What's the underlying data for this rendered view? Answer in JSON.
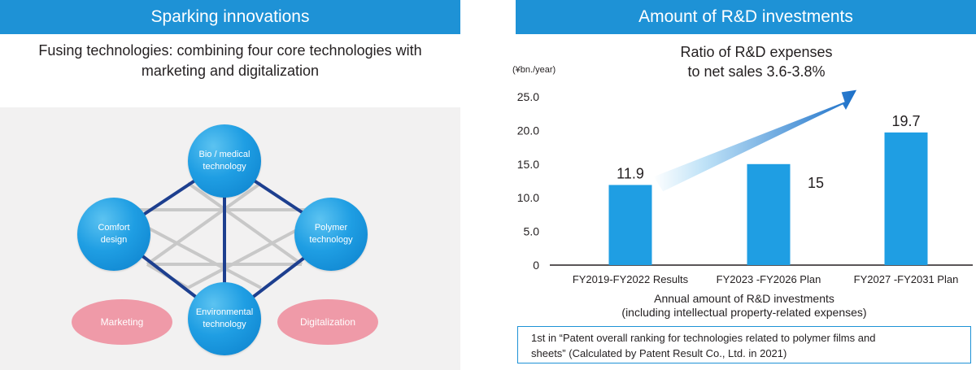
{
  "left": {
    "header": "Sparking innovations",
    "subtitle_line1": "Fusing technologies: combining four core technologies with",
    "subtitle_line2": "marketing and digitalization",
    "nodes": {
      "bio_line1": "Bio / medical",
      "bio_line2": "technology",
      "comfort_line1": "Comfort",
      "comfort_line2": "design",
      "polymer_line1": "Polymer",
      "polymer_line2": "technology",
      "environmental_line1": "Environmental",
      "environmental_line2": "technology"
    },
    "marketing": "Marketing",
    "digitalization": "Digitalization",
    "colors": {
      "node": "#1f9ee3",
      "strong_line": "#1d3f8f",
      "weak_line": "#c8c8c8",
      "oval": "#ef9aa8"
    }
  },
  "right": {
    "header": "Amount of R&D investments",
    "ratio_line1": "Ratio of R&D expenses",
    "ratio_line2": "to net sales 3.6-3.8%",
    "unit": "(¥bn./year)",
    "note_line1": "1st in “Patent overall ranking for technologies related to polymer films and",
    "note_line2": "sheets” (Calculated by Patent Result Co., Ltd. in 2021)"
  },
  "chart_data": {
    "type": "bar",
    "categories": [
      "FY2019-FY2022 Results",
      "FY2023 -FY2026 Plan",
      "FY2027 -FY2031 Plan"
    ],
    "values": [
      11.9,
      15,
      19.7
    ],
    "value_labels": [
      "11.9",
      "15",
      "19.7"
    ],
    "ylim": [
      0,
      25
    ],
    "yticks": [
      "0",
      "5.0",
      "10.0",
      "15.0",
      "20.0",
      "25.0"
    ],
    "ytick_values": [
      0,
      5,
      10,
      15,
      20,
      25
    ],
    "xlabel_line1": "Annual amount of R&D investments",
    "xlabel_line2": "(including intellectual property-related expenses)",
    "ylabel": "(¥bn./year)",
    "grid": false,
    "bar_color": "#1f9ee3"
  }
}
